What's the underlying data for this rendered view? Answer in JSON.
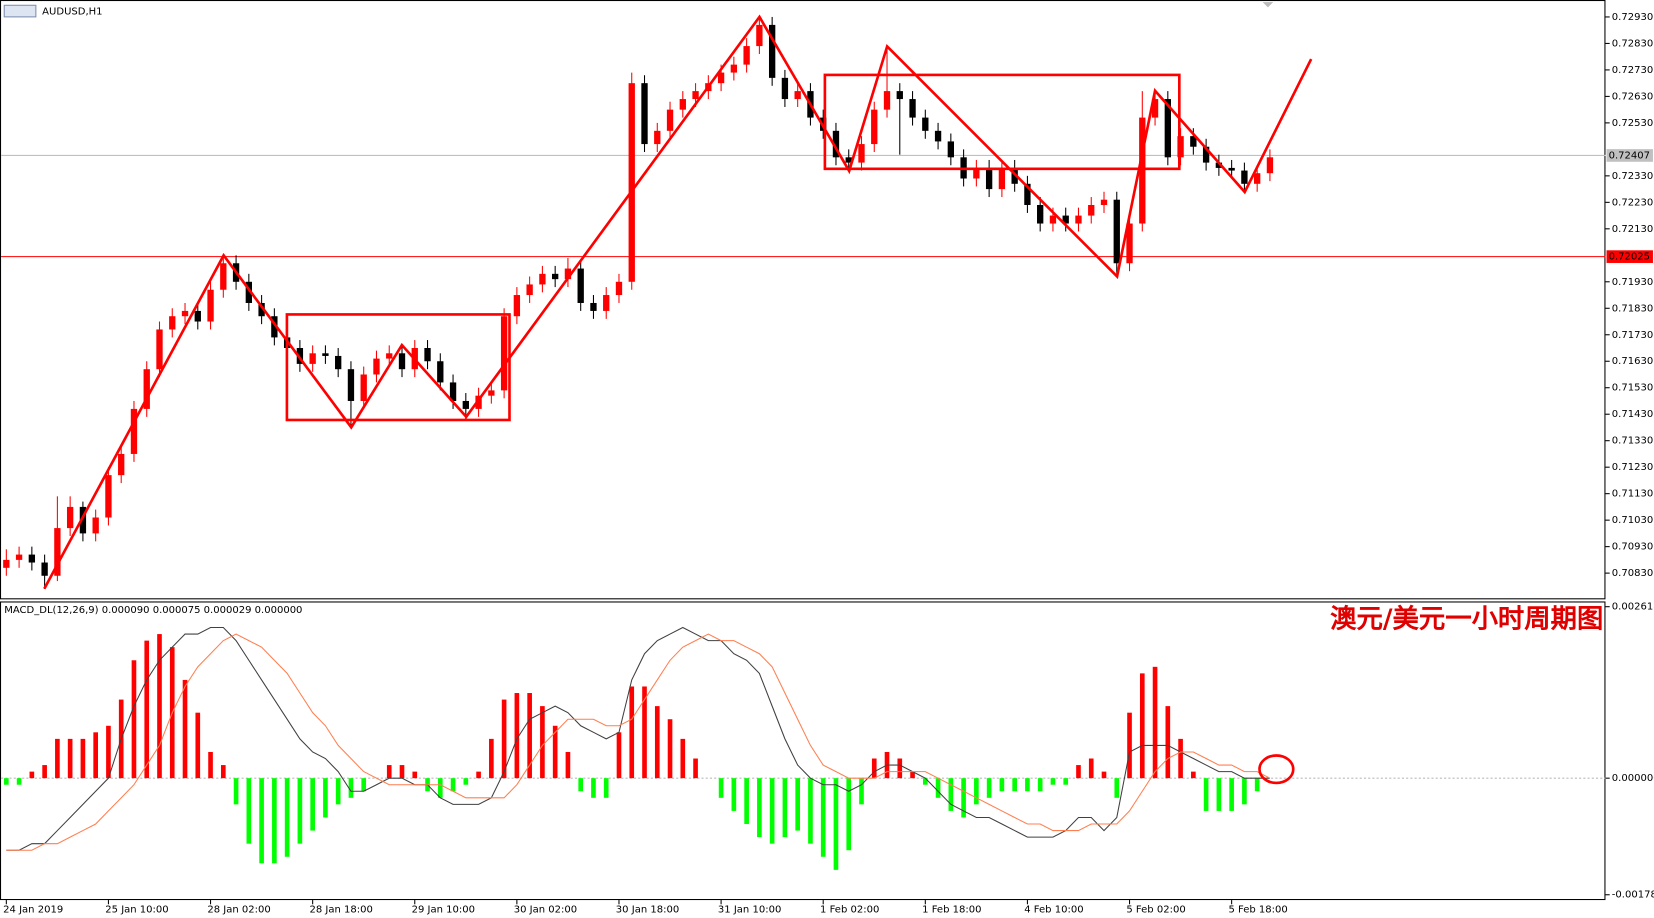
{
  "chart_data": [
    {
      "type": "candlestick",
      "title": "AUDUSD,H1",
      "categories": [
        "24 Jan 2019",
        null,
        null,
        null,
        null,
        null,
        null,
        null,
        "25 Jan 10:00",
        null,
        null,
        null,
        null,
        null,
        null,
        null,
        "28 Jan 02:00",
        null,
        null,
        null,
        null,
        null,
        null,
        null,
        "28 Jan 18:00",
        null,
        null,
        null,
        null,
        null,
        null,
        null,
        "29 Jan 10:00",
        null,
        null,
        null,
        null,
        null,
        null,
        null,
        "30 Jan 02:00",
        null,
        null,
        null,
        null,
        null,
        null,
        null,
        "30 Jan 18:00",
        null,
        null,
        null,
        null,
        null,
        null,
        null,
        "31 Jan 10:00",
        null,
        null,
        null,
        null,
        null,
        null,
        null,
        "1 Feb 02:00",
        null,
        null,
        null,
        null,
        null,
        null,
        null,
        "1 Feb 18:00",
        null,
        null,
        null,
        null,
        null,
        null,
        null,
        "4 Feb 10:00",
        null,
        null,
        null,
        null,
        null,
        null,
        null,
        "5 Feb 02:00",
        null,
        null,
        null,
        null,
        null,
        null,
        null,
        "5 Feb 18:00",
        null,
        null,
        null
      ],
      "candles": [
        [
          0.7085,
          0.7092,
          0.7082,
          0.7088
        ],
        [
          0.7088,
          0.7093,
          0.7085,
          0.709
        ],
        [
          0.709,
          0.7093,
          0.7084,
          0.7087
        ],
        [
          0.7087,
          0.709,
          0.7077,
          0.7082
        ],
        [
          0.7082,
          0.7112,
          0.708,
          0.71
        ],
        [
          0.71,
          0.7112,
          0.7097,
          0.7108
        ],
        [
          0.7108,
          0.711,
          0.7095,
          0.7098
        ],
        [
          0.7098,
          0.7107,
          0.7095,
          0.7104
        ],
        [
          0.7104,
          0.7123,
          0.7101,
          0.712
        ],
        [
          0.712,
          0.7131,
          0.7117,
          0.7128
        ],
        [
          0.7128,
          0.7148,
          0.7125,
          0.7145
        ],
        [
          0.7145,
          0.7163,
          0.7142,
          0.716
        ],
        [
          0.716,
          0.7178,
          0.7157,
          0.7175
        ],
        [
          0.7175,
          0.7183,
          0.7172,
          0.718
        ],
        [
          0.718,
          0.7185,
          0.7177,
          0.7182
        ],
        [
          0.7182,
          0.7185,
          0.7175,
          0.7178
        ],
        [
          0.7178,
          0.7193,
          0.7175,
          0.719
        ],
        [
          0.719,
          0.7203,
          0.7187,
          0.72
        ],
        [
          0.72,
          0.7203,
          0.719,
          0.7193
        ],
        [
          0.7193,
          0.7196,
          0.7182,
          0.7185
        ],
        [
          0.7185,
          0.7188,
          0.7177,
          0.718
        ],
        [
          0.718,
          0.7183,
          0.7169,
          0.7172
        ],
        [
          0.7172,
          0.7175,
          0.7165,
          0.7168
        ],
        [
          0.7168,
          0.7171,
          0.7159,
          0.7162
        ],
        [
          0.7162,
          0.7169,
          0.7159,
          0.7166
        ],
        [
          0.7166,
          0.7169,
          0.7162,
          0.7165
        ],
        [
          0.7165,
          0.7168,
          0.7157,
          0.716
        ],
        [
          0.716,
          0.7163,
          0.7138,
          0.7148
        ],
        [
          0.7148,
          0.7161,
          0.7145,
          0.7158
        ],
        [
          0.7158,
          0.7167,
          0.7155,
          0.7164
        ],
        [
          0.7164,
          0.7169,
          0.7161,
          0.7166
        ],
        [
          0.7166,
          0.7169,
          0.7157,
          0.716
        ],
        [
          0.716,
          0.7171,
          0.7157,
          0.7168
        ],
        [
          0.7168,
          0.7171,
          0.716,
          0.7163
        ],
        [
          0.7163,
          0.7166,
          0.7152,
          0.7155
        ],
        [
          0.7155,
          0.7158,
          0.7145,
          0.7148
        ],
        [
          0.7148,
          0.7151,
          0.7141,
          0.7145
        ],
        [
          0.7145,
          0.7153,
          0.7142,
          0.715
        ],
        [
          0.715,
          0.7155,
          0.7147,
          0.7152
        ],
        [
          0.7152,
          0.7183,
          0.7149,
          0.718
        ],
        [
          0.718,
          0.7191,
          0.7177,
          0.7188
        ],
        [
          0.7188,
          0.7195,
          0.7185,
          0.7192
        ],
        [
          0.7192,
          0.7199,
          0.7189,
          0.7196
        ],
        [
          0.7196,
          0.7199,
          0.7191,
          0.7194
        ],
        [
          0.7194,
          0.7202,
          0.7191,
          0.7198
        ],
        [
          0.7198,
          0.7201,
          0.7182,
          0.7185
        ],
        [
          0.7185,
          0.7188,
          0.7179,
          0.7182
        ],
        [
          0.7182,
          0.7191,
          0.7179,
          0.7188
        ],
        [
          0.7188,
          0.7196,
          0.7185,
          0.7193
        ],
        [
          0.7193,
          0.7272,
          0.719,
          0.7268
        ],
        [
          0.7268,
          0.7271,
          0.7242,
          0.7245
        ],
        [
          0.7245,
          0.7253,
          0.7242,
          0.725
        ],
        [
          0.725,
          0.7261,
          0.7247,
          0.7258
        ],
        [
          0.7258,
          0.7265,
          0.7255,
          0.7262
        ],
        [
          0.7262,
          0.7268,
          0.7259,
          0.7265
        ],
        [
          0.7265,
          0.7271,
          0.7262,
          0.7268
        ],
        [
          0.7268,
          0.7275,
          0.7265,
          0.7272
        ],
        [
          0.7272,
          0.7278,
          0.7269,
          0.7275
        ],
        [
          0.7275,
          0.7285,
          0.7272,
          0.7282
        ],
        [
          0.7282,
          0.7293,
          0.7279,
          0.729
        ],
        [
          0.729,
          0.7293,
          0.7267,
          0.727
        ],
        [
          0.727,
          0.7273,
          0.7259,
          0.7262
        ],
        [
          0.7262,
          0.7268,
          0.7259,
          0.7265
        ],
        [
          0.7265,
          0.7268,
          0.7252,
          0.7255
        ],
        [
          0.7255,
          0.7258,
          0.7247,
          0.725
        ],
        [
          0.725,
          0.7253,
          0.7237,
          0.724
        ],
        [
          0.724,
          0.7243,
          0.7235,
          0.7238
        ],
        [
          0.7238,
          0.7248,
          0.7235,
          0.7245
        ],
        [
          0.7245,
          0.7261,
          0.7242,
          0.7258
        ],
        [
          0.7258,
          0.7282,
          0.7255,
          0.7265
        ],
        [
          0.7265,
          0.7268,
          0.7241,
          0.7262
        ],
        [
          0.7262,
          0.7265,
          0.7252,
          0.7255
        ],
        [
          0.7255,
          0.7258,
          0.7247,
          0.725
        ],
        [
          0.725,
          0.7253,
          0.7243,
          0.7246
        ],
        [
          0.7246,
          0.7249,
          0.7237,
          0.724
        ],
        [
          0.724,
          0.7243,
          0.7229,
          0.7232
        ],
        [
          0.7232,
          0.7239,
          0.7229,
          0.7236
        ],
        [
          0.7236,
          0.7239,
          0.7225,
          0.7228
        ],
        [
          0.7228,
          0.7239,
          0.7225,
          0.7236
        ],
        [
          0.7236,
          0.7239,
          0.7227,
          0.723
        ],
        [
          0.723,
          0.7233,
          0.7219,
          0.7222
        ],
        [
          0.7222,
          0.7225,
          0.7212,
          0.7215
        ],
        [
          0.7215,
          0.7221,
          0.7212,
          0.7218
        ],
        [
          0.7218,
          0.7221,
          0.7212,
          0.7215
        ],
        [
          0.7215,
          0.7221,
          0.7212,
          0.7218
        ],
        [
          0.7218,
          0.7225,
          0.7215,
          0.7222
        ],
        [
          0.7222,
          0.7227,
          0.7219,
          0.7224
        ],
        [
          0.7224,
          0.7227,
          0.7195,
          0.72
        ],
        [
          0.72,
          0.7218,
          0.7197,
          0.7215
        ],
        [
          0.7215,
          0.7265,
          0.7212,
          0.7255
        ],
        [
          0.7255,
          0.7265,
          0.7252,
          0.7262
        ],
        [
          0.7262,
          0.7265,
          0.7237,
          0.724
        ],
        [
          0.724,
          0.7251,
          0.7237,
          0.7248
        ],
        [
          0.7248,
          0.7251,
          0.7241,
          0.7244
        ],
        [
          0.7244,
          0.7247,
          0.7235,
          0.7238
        ],
        [
          0.7238,
          0.7241,
          0.7233,
          0.7236
        ],
        [
          0.7236,
          0.7239,
          0.7232,
          0.7235
        ],
        [
          0.7235,
          0.7238,
          0.7227,
          0.723
        ],
        [
          0.723,
          0.7237,
          0.7227,
          0.7234
        ],
        [
          0.7234,
          0.7243,
          0.7231,
          0.724
        ]
      ],
      "up_color": "#ff0000",
      "down_color": "#000000",
      "ylim": [
        0.70731,
        0.72994
      ],
      "yticks": [
        {
          "value": 0.7293,
          "label": "0.72930"
        },
        {
          "value": 0.7283,
          "label": "0.72830"
        },
        {
          "value": 0.7273,
          "label": "0.72730"
        },
        {
          "value": 0.7263,
          "label": "0.72630"
        },
        {
          "value": 0.7253,
          "label": "0.72530"
        },
        {
          "value": 0.7233,
          "label": "0.72330"
        },
        {
          "value": 0.7223,
          "label": "0.72230"
        },
        {
          "value": 0.7213,
          "label": "0.72130"
        },
        {
          "value": 0.7193,
          "label": "0.71930"
        },
        {
          "value": 0.7183,
          "label": "0.71830"
        },
        {
          "value": 0.7173,
          "label": "0.71730"
        },
        {
          "value": 0.7163,
          "label": "0.71630"
        },
        {
          "value": 0.7153,
          "label": "0.71530"
        },
        {
          "value": 0.7143,
          "label": "0.71430"
        },
        {
          "value": 0.7133,
          "label": "0.71330"
        },
        {
          "value": 0.7123,
          "label": "0.71230"
        },
        {
          "value": 0.7113,
          "label": "0.71130"
        },
        {
          "value": 0.7103,
          "label": "0.71030"
        },
        {
          "value": 0.7093,
          "label": "0.70930"
        },
        {
          "value": 0.7083,
          "label": "0.70830"
        }
      ],
      "hlines": [
        {
          "value": 0.72407,
          "color": "#c0c0c0"
        },
        {
          "value": 0.72025,
          "color": "#ff0000"
        }
      ]
    },
    {
      "type": "macd",
      "title": "MACD_DL(12,26,9) 0.000090 0.000075 0.000029 0.000000",
      "annotation": "澳元/美元一小时周期图",
      "ylim": [
        -0.001861,
        0.002682
      ],
      "yticks": [
        {
          "value": 0.002618,
          "label": "0.002618"
        },
        {
          "value": 0,
          "label": "0.000000"
        },
        {
          "value": -0.00178,
          "label": "-0.001780"
        }
      ],
      "positive_color": "#ff0000",
      "negative_color": "#00ff00",
      "values": [
        -0.0001,
        -0.0001,
        0.0001,
        0.0002,
        0.0006,
        0.0006,
        0.0006,
        0.0007,
        0.0008,
        0.0012,
        0.0018,
        0.0021,
        0.0022,
        0.002,
        0.0015,
        0.001,
        0.0004,
        0.0002,
        -0.0004,
        -0.001,
        -0.0013,
        -0.0013,
        -0.0012,
        -0.001,
        -0.0008,
        -0.0006,
        -0.0004,
        -0.0003,
        -0.0002,
        0,
        0.0002,
        0.0002,
        0.0001,
        -0.0002,
        -0.0003,
        -0.0002,
        -0.0001,
        0.0001,
        0.0006,
        0.0012,
        0.0013,
        0.0013,
        0.0011,
        0.0008,
        0.0004,
        -0.0002,
        -0.0003,
        -0.0003,
        0.0007,
        0.0014,
        0.0014,
        0.0011,
        0.0009,
        0.0006,
        0.0003,
        0,
        -0.0003,
        -0.0005,
        -0.0007,
        -0.0009,
        -0.001,
        -0.0009,
        -0.0008,
        -0.001,
        -0.0012,
        -0.0014,
        -0.0011,
        -0.0004,
        0.0003,
        0.0004,
        0.0003,
        0.0001,
        -0.0001,
        -0.0003,
        -0.0005,
        -0.0006,
        -0.0004,
        -0.0003,
        -0.0002,
        -0.0002,
        -0.0002,
        -0.0002,
        -0.0001,
        -0.0001,
        0.0002,
        0.0003,
        0.0001,
        -0.0003,
        0.001,
        0.0016,
        0.0017,
        0.0011,
        0.0006,
        0.0001,
        -0.0005,
        -0.0005,
        -0.0005,
        -0.0004,
        -0.0002,
        0
      ],
      "series": [
        {
          "color": "#404040",
          "values": [
            -0.0011,
            -0.0011,
            -0.001,
            -0.001,
            -0.0008,
            -0.0006,
            -0.0004,
            -0.0002,
            0,
            0.0006,
            0.0011,
            0.0015,
            0.0018,
            0.002,
            0.0022,
            0.0022,
            0.0023,
            0.0023,
            0.0021,
            0.0018,
            0.0015,
            0.0012,
            0.0009,
            0.0006,
            0.0004,
            0.0003,
            0.0001,
            -0.0002,
            -0.0002,
            -0.0001,
            0,
            0,
            -0.0001,
            -0.0001,
            -0.0003,
            -0.0004,
            -0.0004,
            -0.0004,
            -0.0003,
            0.0001,
            0.0006,
            0.0009,
            0.001,
            0.0011,
            0.001,
            0.0008,
            0.0007,
            0.0006,
            0.0007,
            0.0015,
            0.0019,
            0.0021,
            0.0022,
            0.0023,
            0.0022,
            0.0021,
            0.0021,
            0.0019,
            0.0018,
            0.0016,
            0.0011,
            0.0006,
            0.0002,
            0,
            -0.0001,
            -0.0001,
            -0.0002,
            -0.0001,
            0.0001,
            0.0002,
            0.0002,
            0.0001,
            0,
            -0.0002,
            -0.0004,
            -0.0005,
            -0.0006,
            -0.0006,
            -0.0007,
            -0.0008,
            -0.0009,
            -0.0009,
            -0.0009,
            -0.0008,
            -0.0006,
            -0.0006,
            -0.0008,
            -0.0006,
            0.0004,
            0.0005,
            0.0005,
            0.0005,
            0.0004,
            0.0003,
            0.0002,
            0.0001,
            0.0001,
            0,
            0,
            0
          ]
        },
        {
          "color": "#ff7f50",
          "values": [
            -0.0011,
            -0.0011,
            -0.0011,
            -0.001,
            -0.001,
            -0.0009,
            -0.0008,
            -0.0007,
            -0.0005,
            -0.0003,
            -0.0001,
            0.0002,
            0.0005,
            0.001,
            0.0014,
            0.0017,
            0.0019,
            0.0021,
            0.0022,
            0.0021,
            0.002,
            0.0018,
            0.0016,
            0.0013,
            0.001,
            0.0008,
            0.0005,
            0.0003,
            0.0001,
            0,
            -0.0001,
            -0.0001,
            -0.0001,
            -0.0001,
            -0.0001,
            -0.0002,
            -0.0003,
            -0.0003,
            -0.0003,
            -0.0003,
            -0.0001,
            0.0002,
            0.0005,
            0.0007,
            0.0009,
            0.0009,
            0.0009,
            0.0008,
            0.0008,
            0.0009,
            0.0012,
            0.0015,
            0.0018,
            0.002,
            0.0021,
            0.0022,
            0.0021,
            0.0021,
            0.002,
            0.0019,
            0.0017,
            0.0013,
            0.0009,
            0.0005,
            0.0002,
            0.0001,
            0,
            0,
            0,
            0.0001,
            0.0001,
            0.0001,
            0.0001,
            0,
            -0.0001,
            -0.0002,
            -0.0003,
            -0.0004,
            -0.0005,
            -0.0006,
            -0.0007,
            -0.0007,
            -0.0008,
            -0.0008,
            -0.0008,
            -0.0007,
            -0.0007,
            -0.0007,
            -0.0005,
            -0.0002,
            0.0001,
            0.0003,
            0.0004,
            0.0004,
            0.0003,
            0.0002,
            0.0002,
            0.0001,
            0.0001,
            0
          ]
        }
      ]
    }
  ]
}
